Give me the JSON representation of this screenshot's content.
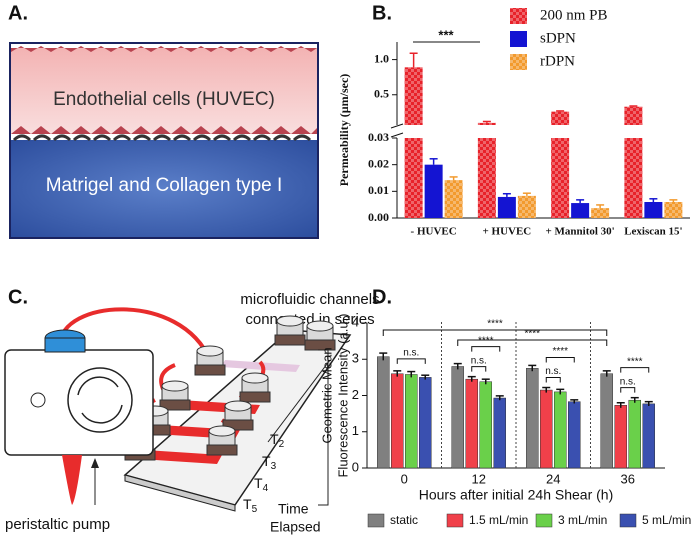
{
  "panels": {
    "a": {
      "label": "A.",
      "top_text": "Endothelial cells (HUVEC)",
      "bottom_text": "Matrigel and Collagen type I"
    },
    "c": {
      "label": "C.",
      "channels_text": [
        "microfluidic channels",
        "connected in series"
      ],
      "time_points": [
        {
          "base": "T",
          "sub": "2"
        },
        {
          "base": "T",
          "sub": "3"
        },
        {
          "base": "T",
          "sub": "4"
        },
        {
          "base": "T",
          "sub": "5"
        }
      ],
      "time_text": [
        "Time",
        "Elapsed"
      ],
      "pump_text": "peristaltic pump"
    }
  },
  "chart_data": [
    {
      "type": "bar",
      "label": "B.",
      "ylabel": "Permeability (µm/sec)",
      "categories": [
        "- HUVEC",
        "+ HUVEC",
        "+ Mannitol 30'",
        "Lexiscan 15'"
      ],
      "series": [
        {
          "name": "200 nm PB",
          "color": "#e8222a",
          "pattern": "checker",
          "values": [
            0.89,
            0.1,
            0.26,
            0.33
          ],
          "errors": [
            0.2,
            0.02,
            0.01,
            0.01
          ]
        },
        {
          "name": "sDPN",
          "color": "#1414d2",
          "values": [
            0.02,
            0.0079,
            0.0056,
            0.006
          ],
          "errors": [
            0.0022,
            0.0012,
            0.0012,
            0.0012
          ]
        },
        {
          "name": "rDPN",
          "color": "#f29a2e",
          "pattern": "checker",
          "values": [
            0.0142,
            0.0083,
            0.0037,
            0.006
          ],
          "errors": [
            0.0012,
            0.001,
            0.0012,
            0.0008
          ]
        }
      ],
      "ylim": [
        0,
        0.03
      ],
      "yticks": [
        {
          "value": 0,
          "label": "0.00"
        },
        0.01,
        0.02,
        0.03
      ],
      "y_upper_lim": [
        0.07,
        1.25
      ],
      "y_upper_ticks": [
        0.5,
        {
          "value": 1,
          "label": "1.0"
        }
      ],
      "annotations": [
        "***"
      ]
    },
    {
      "type": "bar",
      "label": "D.",
      "xlabel": "Hours after initial 24h Shear (h)",
      "ylabel": [
        "Geometric Mean",
        "Fluorescence Intensity (a.u.)"
      ],
      "categories": [
        "0",
        "12",
        "24",
        "36"
      ],
      "series": [
        {
          "name": "static",
          "color": "#808080",
          "values": [
            3.07,
            2.8,
            2.75,
            2.6
          ],
          "errors": [
            0.1,
            0.08,
            0.08,
            0.08
          ]
        },
        {
          "name": "1.5 mL/min",
          "color": "#f0404a",
          "values": [
            2.6,
            2.45,
            2.15,
            1.73
          ],
          "errors": [
            0.08,
            0.07,
            0.07,
            0.07
          ]
        },
        {
          "name": "3 mL/min",
          "color": "#6ad04a",
          "values": [
            2.58,
            2.38,
            2.1,
            1.87
          ],
          "errors": [
            0.08,
            0.07,
            0.07,
            0.07
          ]
        },
        {
          "name": "5 mL/min",
          "color": "#3a50b0",
          "values": [
            2.5,
            1.93,
            1.83,
            1.77
          ],
          "errors": [
            0.06,
            0.06,
            0.05,
            0.06
          ]
        }
      ],
      "ylim": [
        0,
        4
      ],
      "yticks": [
        0,
        1,
        2,
        3,
        4
      ],
      "annotations": [
        "****",
        "****",
        "n.s.",
        "****",
        "n.s.",
        "****",
        "n.s.",
        "****",
        "n.s."
      ]
    }
  ]
}
